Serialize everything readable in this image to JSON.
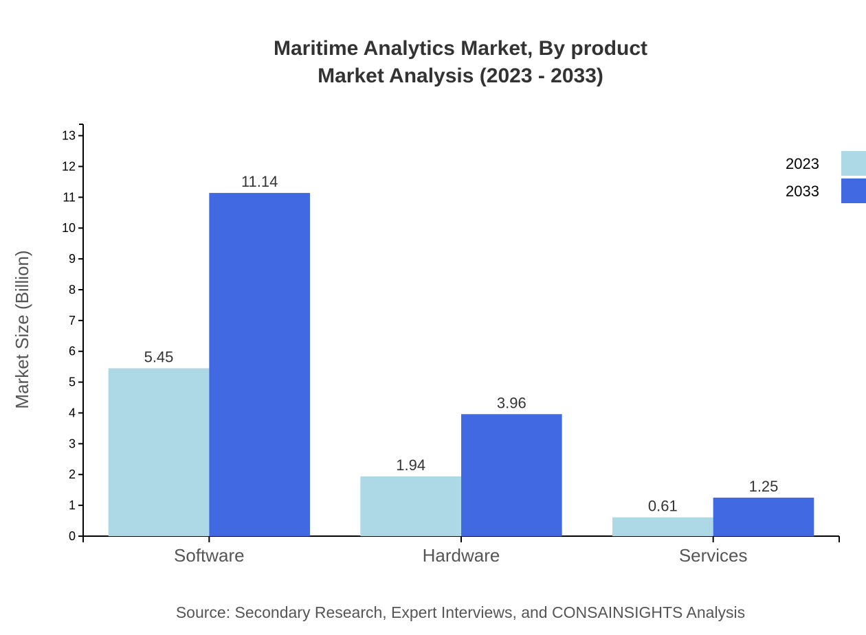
{
  "chart_data": {
    "type": "bar",
    "title": "Maritime Analytics Market, By product",
    "subtitle": "Market Analysis (2023 - 2033)",
    "xlabel": "",
    "ylabel": "Market Size (Billion)",
    "categories": [
      "Software",
      "Hardware",
      "Services"
    ],
    "series": [
      {
        "name": "2023",
        "values": [
          5.45,
          1.94,
          0.61
        ],
        "color": "#ADD8E6"
      },
      {
        "name": "2033",
        "values": [
          11.14,
          3.96,
          1.25
        ],
        "color": "#4169E1"
      }
    ],
    "ylim": [
      0,
      13.37
    ],
    "yticks": [
      0,
      1,
      2,
      3,
      4,
      5,
      6,
      7,
      8,
      9,
      10,
      11,
      12,
      13
    ],
    "grid": false,
    "legend_position": "top-right",
    "source": "Source: Secondary Research, Expert Interviews, and CONSAINSIGHTS Analysis"
  }
}
